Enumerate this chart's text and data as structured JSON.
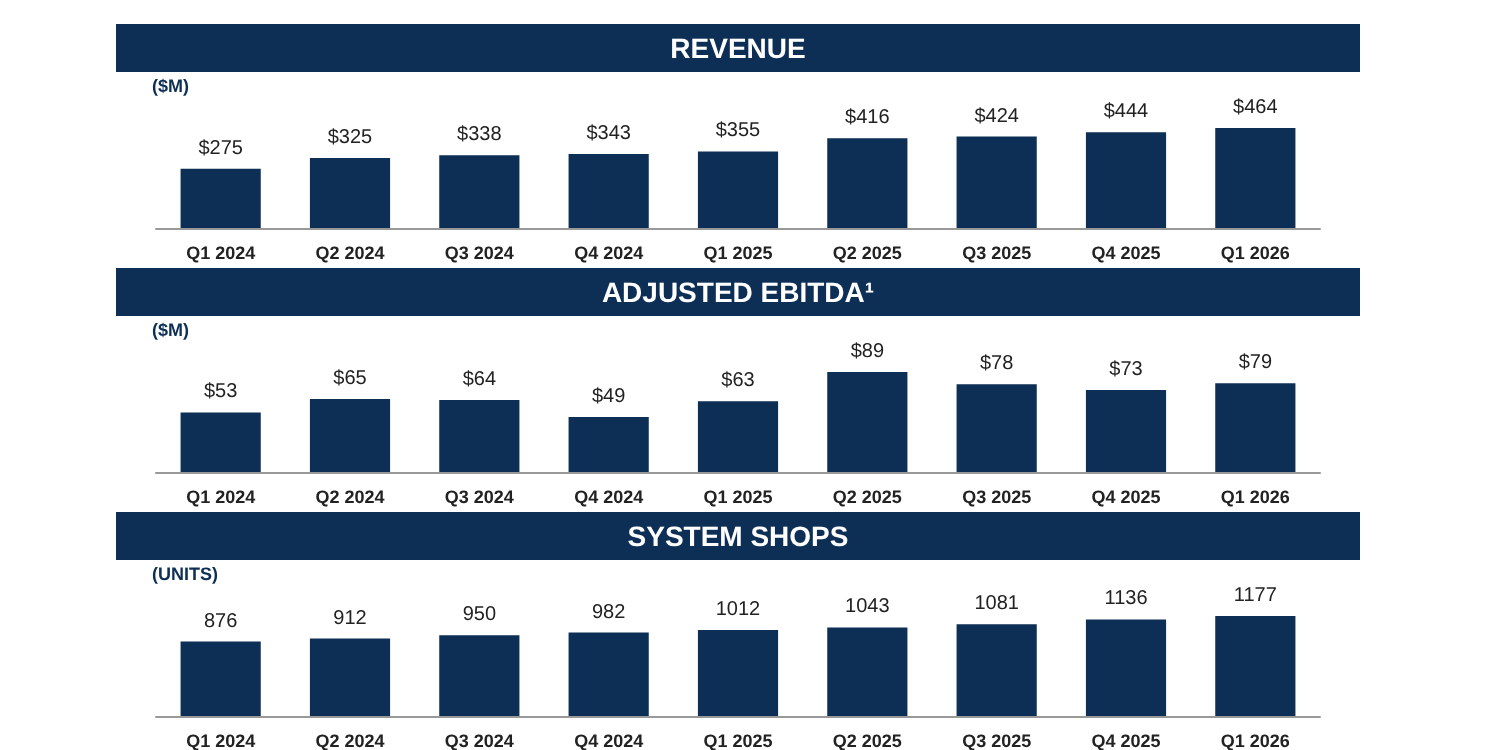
{
  "chart_data": [
    {
      "type": "bar",
      "title": "REVENUE",
      "ylabel": "($M)",
      "categories": [
        "Q1 2024",
        "Q2 2024",
        "Q3 2024",
        "Q4 2024",
        "Q1 2025",
        "Q2 2025",
        "Q3 2025",
        "Q4 2025",
        "Q1 2026"
      ],
      "values": [
        275,
        325,
        338,
        343,
        355,
        416,
        424,
        444,
        464
      ],
      "value_labels": [
        "$275",
        "$325",
        "$338",
        "$343",
        "$355",
        "$416",
        "$424",
        "$444",
        "$464"
      ],
      "color": "#0d2f55"
    },
    {
      "type": "bar",
      "title": "ADJUSTED EBITDA¹",
      "ylabel": "($M)",
      "categories": [
        "Q1 2024",
        "Q2 2024",
        "Q3 2024",
        "Q4 2024",
        "Q1 2025",
        "Q2 2025",
        "Q3 2025",
        "Q4 2025",
        "Q1 2026"
      ],
      "values": [
        53,
        65,
        64,
        49,
        63,
        89,
        78,
        73,
        79
      ],
      "value_labels": [
        "$53",
        "$65",
        "$64",
        "$49",
        "$63",
        "$89",
        "$78",
        "$73",
        "$79"
      ],
      "color": "#0d2f55"
    },
    {
      "type": "bar",
      "title": "SYSTEM SHOPS",
      "ylabel": "(UNITS)",
      "categories": [
        "Q1 2024",
        "Q2 2024",
        "Q3 2024",
        "Q4 2024",
        "Q1 2025",
        "Q2 2025",
        "Q3 2025",
        "Q4 2025",
        "Q1 2026"
      ],
      "values": [
        876,
        912,
        950,
        982,
        1012,
        1043,
        1081,
        1136,
        1177
      ],
      "data_labels": true,
      "color": "#0d2f55"
    }
  ]
}
